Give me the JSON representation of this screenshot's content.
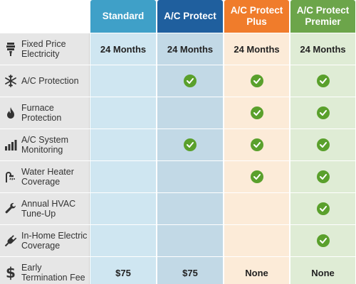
{
  "plans": [
    {
      "label": "Standard",
      "header_color": "#3fa0c8",
      "cell_color": "#cfe6f1"
    },
    {
      "label": "A/C Protect",
      "header_color": "#1f5f9e",
      "cell_color": "#c2d9e6"
    },
    {
      "label": "A/C Protect\nPlus",
      "header_color": "#f07c2b",
      "cell_color": "#fcebd8"
    },
    {
      "label": "A/C Protect\nPremier",
      "header_color": "#6ca54a",
      "cell_color": "#dfecd5"
    }
  ],
  "features": [
    {
      "label": "Fixed Price\nElectricity",
      "icon": "plug-icon",
      "values": [
        "24 Months",
        "24 Months",
        "24 Months",
        "24 Months"
      ]
    },
    {
      "label": "A/C Protection",
      "icon": "snowflake-icon",
      "values": [
        "",
        "check",
        "check",
        "check"
      ]
    },
    {
      "label": "Furnace\nProtection",
      "icon": "flame-icon",
      "values": [
        "",
        "",
        "check",
        "check"
      ]
    },
    {
      "label": "A/C System\nMonitoring",
      "icon": "bar-chart-icon",
      "values": [
        "",
        "check",
        "check",
        "check"
      ]
    },
    {
      "label": "Water Heater\nCoverage",
      "icon": "shower-icon",
      "values": [
        "",
        "",
        "check",
        "check"
      ]
    },
    {
      "label": "Annual HVAC\nTune-Up",
      "icon": "wrench-icon",
      "values": [
        "",
        "",
        "",
        "check"
      ]
    },
    {
      "label": "In-Home Electric\nCoverage",
      "icon": "electric-plug-icon",
      "values": [
        "",
        "",
        "",
        "check"
      ]
    },
    {
      "label": "Early\nTermination Fee",
      "icon": "dollar-icon",
      "values": [
        "$75",
        "$75",
        "None",
        "None"
      ]
    }
  ]
}
